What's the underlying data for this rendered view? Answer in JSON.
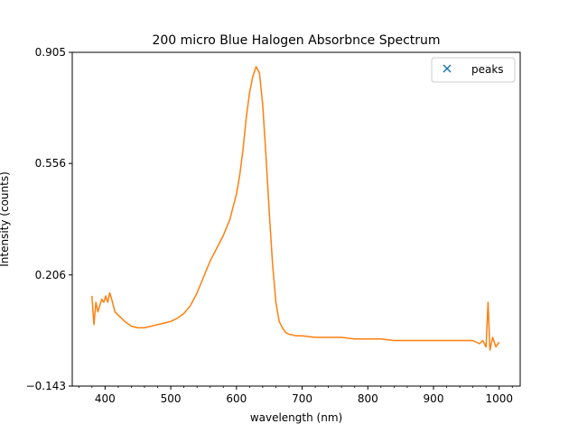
{
  "chart_data": {
    "type": "line",
    "title": "200 micro Blue Halogen Absorbnce Spectrum",
    "xlabel": "wavelength (nm)",
    "ylabel": "Intensity (counts)",
    "xlim": [
      350,
      1032
    ],
    "ylim": [
      -0.143,
      0.905
    ],
    "xticks": [
      400,
      500,
      600,
      700,
      800,
      900,
      1000
    ],
    "xtick_labels": [
      "400",
      "500",
      "600",
      "700",
      "800",
      "900",
      "1000"
    ],
    "yticks": [
      -0.143,
      0.206,
      0.556,
      0.905
    ],
    "ytick_labels": [
      "−0.143",
      "0.206",
      "0.556",
      "0.905"
    ],
    "grid": false,
    "legend": {
      "placement": "upper right",
      "entries": [
        {
          "label": "peaks",
          "marker": "x",
          "color": "#1f77b4"
        }
      ]
    },
    "series": [
      {
        "color": "#ff7f0e",
        "x": [
          380,
          383,
          386,
          389,
          392,
          395,
          398,
          401,
          404,
          407,
          410,
          415,
          420,
          430,
          440,
          450,
          460,
          470,
          480,
          490,
          500,
          510,
          520,
          530,
          540,
          550,
          560,
          570,
          580,
          590,
          600,
          605,
          610,
          615,
          620,
          625,
          630,
          635,
          640,
          645,
          650,
          655,
          660,
          665,
          670,
          675,
          680,
          690,
          700,
          720,
          740,
          760,
          780,
          800,
          820,
          840,
          860,
          880,
          900,
          920,
          940,
          960,
          970,
          975,
          980,
          983,
          986,
          990,
          995,
          1000
        ],
        "y": [
          0.14,
          0.05,
          0.12,
          0.09,
          0.11,
          0.13,
          0.12,
          0.14,
          0.12,
          0.15,
          0.13,
          0.09,
          0.08,
          0.06,
          0.045,
          0.04,
          0.04,
          0.045,
          0.05,
          0.055,
          0.06,
          0.07,
          0.085,
          0.11,
          0.15,
          0.2,
          0.25,
          0.29,
          0.33,
          0.38,
          0.46,
          0.52,
          0.6,
          0.7,
          0.78,
          0.83,
          0.86,
          0.84,
          0.74,
          0.58,
          0.4,
          0.24,
          0.12,
          0.06,
          0.04,
          0.025,
          0.02,
          0.015,
          0.015,
          0.01,
          0.01,
          0.01,
          0.005,
          0.005,
          0.005,
          0.0,
          0.0,
          0.0,
          0.0,
          0.0,
          0.0,
          0.0,
          -0.01,
          0.0,
          -0.02,
          0.12,
          -0.03,
          0.01,
          -0.02,
          -0.005
        ]
      }
    ]
  }
}
